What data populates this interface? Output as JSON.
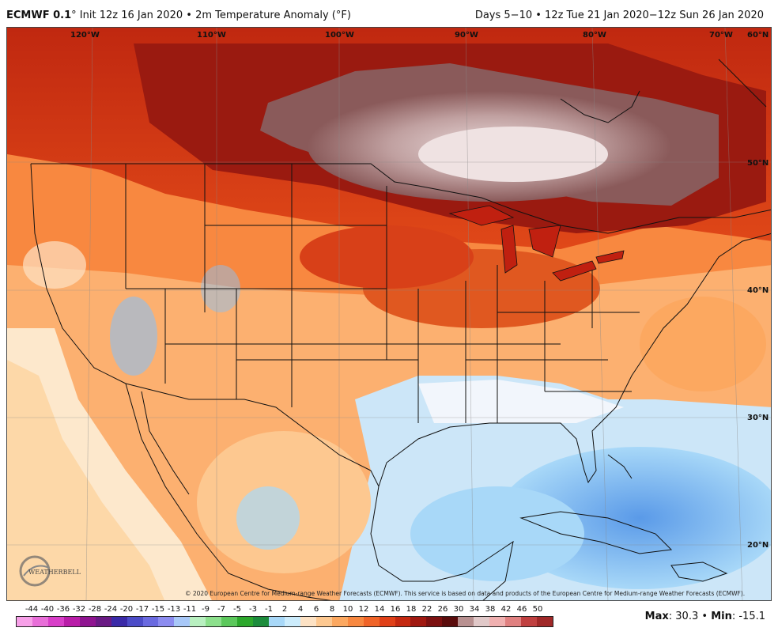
{
  "header": {
    "model": "ECMWF 0.1",
    "degree": "°",
    "init": "Init 12z 16 Jan 2020",
    "bullet": "•",
    "field": "2m Temperature Anomaly (",
    "unit": "°F",
    "close": ")",
    "right": "Days 5−10 • 12z Tue 21 Jan 2020−12z Sun 26 Jan 2020"
  },
  "map": {
    "lon_labels": [
      "120°W",
      "110°W",
      "100°W",
      "90°W",
      "80°W",
      "70°W",
      "60°N"
    ],
    "lat_labels": [
      "50°N",
      "40°N",
      "30°N",
      "20°N"
    ]
  },
  "copyright": "© 2020 European Centre for Medium-range Weather Forecasts (ECMWF). This service is based on data and products of the European Centre for Medium-range Weather Forecasts (ECMWF).",
  "logo_text": "WEATHERBELL",
  "colorbar": {
    "ticks": [
      "-44",
      "-40",
      "-36",
      "-32",
      "-28",
      "-24",
      "-20",
      "-17",
      "-15",
      "-13",
      "-11",
      "-9",
      "-7",
      "-5",
      "-3",
      "-1",
      "2",
      "4",
      "6",
      "8",
      "10",
      "12",
      "14",
      "16",
      "18",
      "22",
      "26",
      "30",
      "34",
      "38",
      "42",
      "46",
      "50"
    ],
    "colors": [
      "#f7a0e8",
      "#e86ed8",
      "#d83ec8",
      "#b91ca8",
      "#8f1490",
      "#6a1a84",
      "#3a2aa8",
      "#4c4cc8",
      "#6a6ae0",
      "#8c8cf0",
      "#a8c8f8",
      "#b8f0c0",
      "#8ce08c",
      "#5cc85c",
      "#2ca82c",
      "#1c8c3c",
      "#a8d8f8",
      "#ccecfc",
      "#fde2c4",
      "#fdc890",
      "#fca860",
      "#f88840",
      "#f06428",
      "#e04018",
      "#c42810",
      "#a01810",
      "#7c1010",
      "#5a0c0c",
      "#b89090",
      "#e0c8c8",
      "#f0b0b0",
      "#e08080",
      "#c04040",
      "#a02828"
    ]
  },
  "stats": {
    "max_label": "Max",
    "max_value": ": 30.3",
    "sep": "•",
    "min_label": "Min",
    "min_value": ": -15.1"
  }
}
